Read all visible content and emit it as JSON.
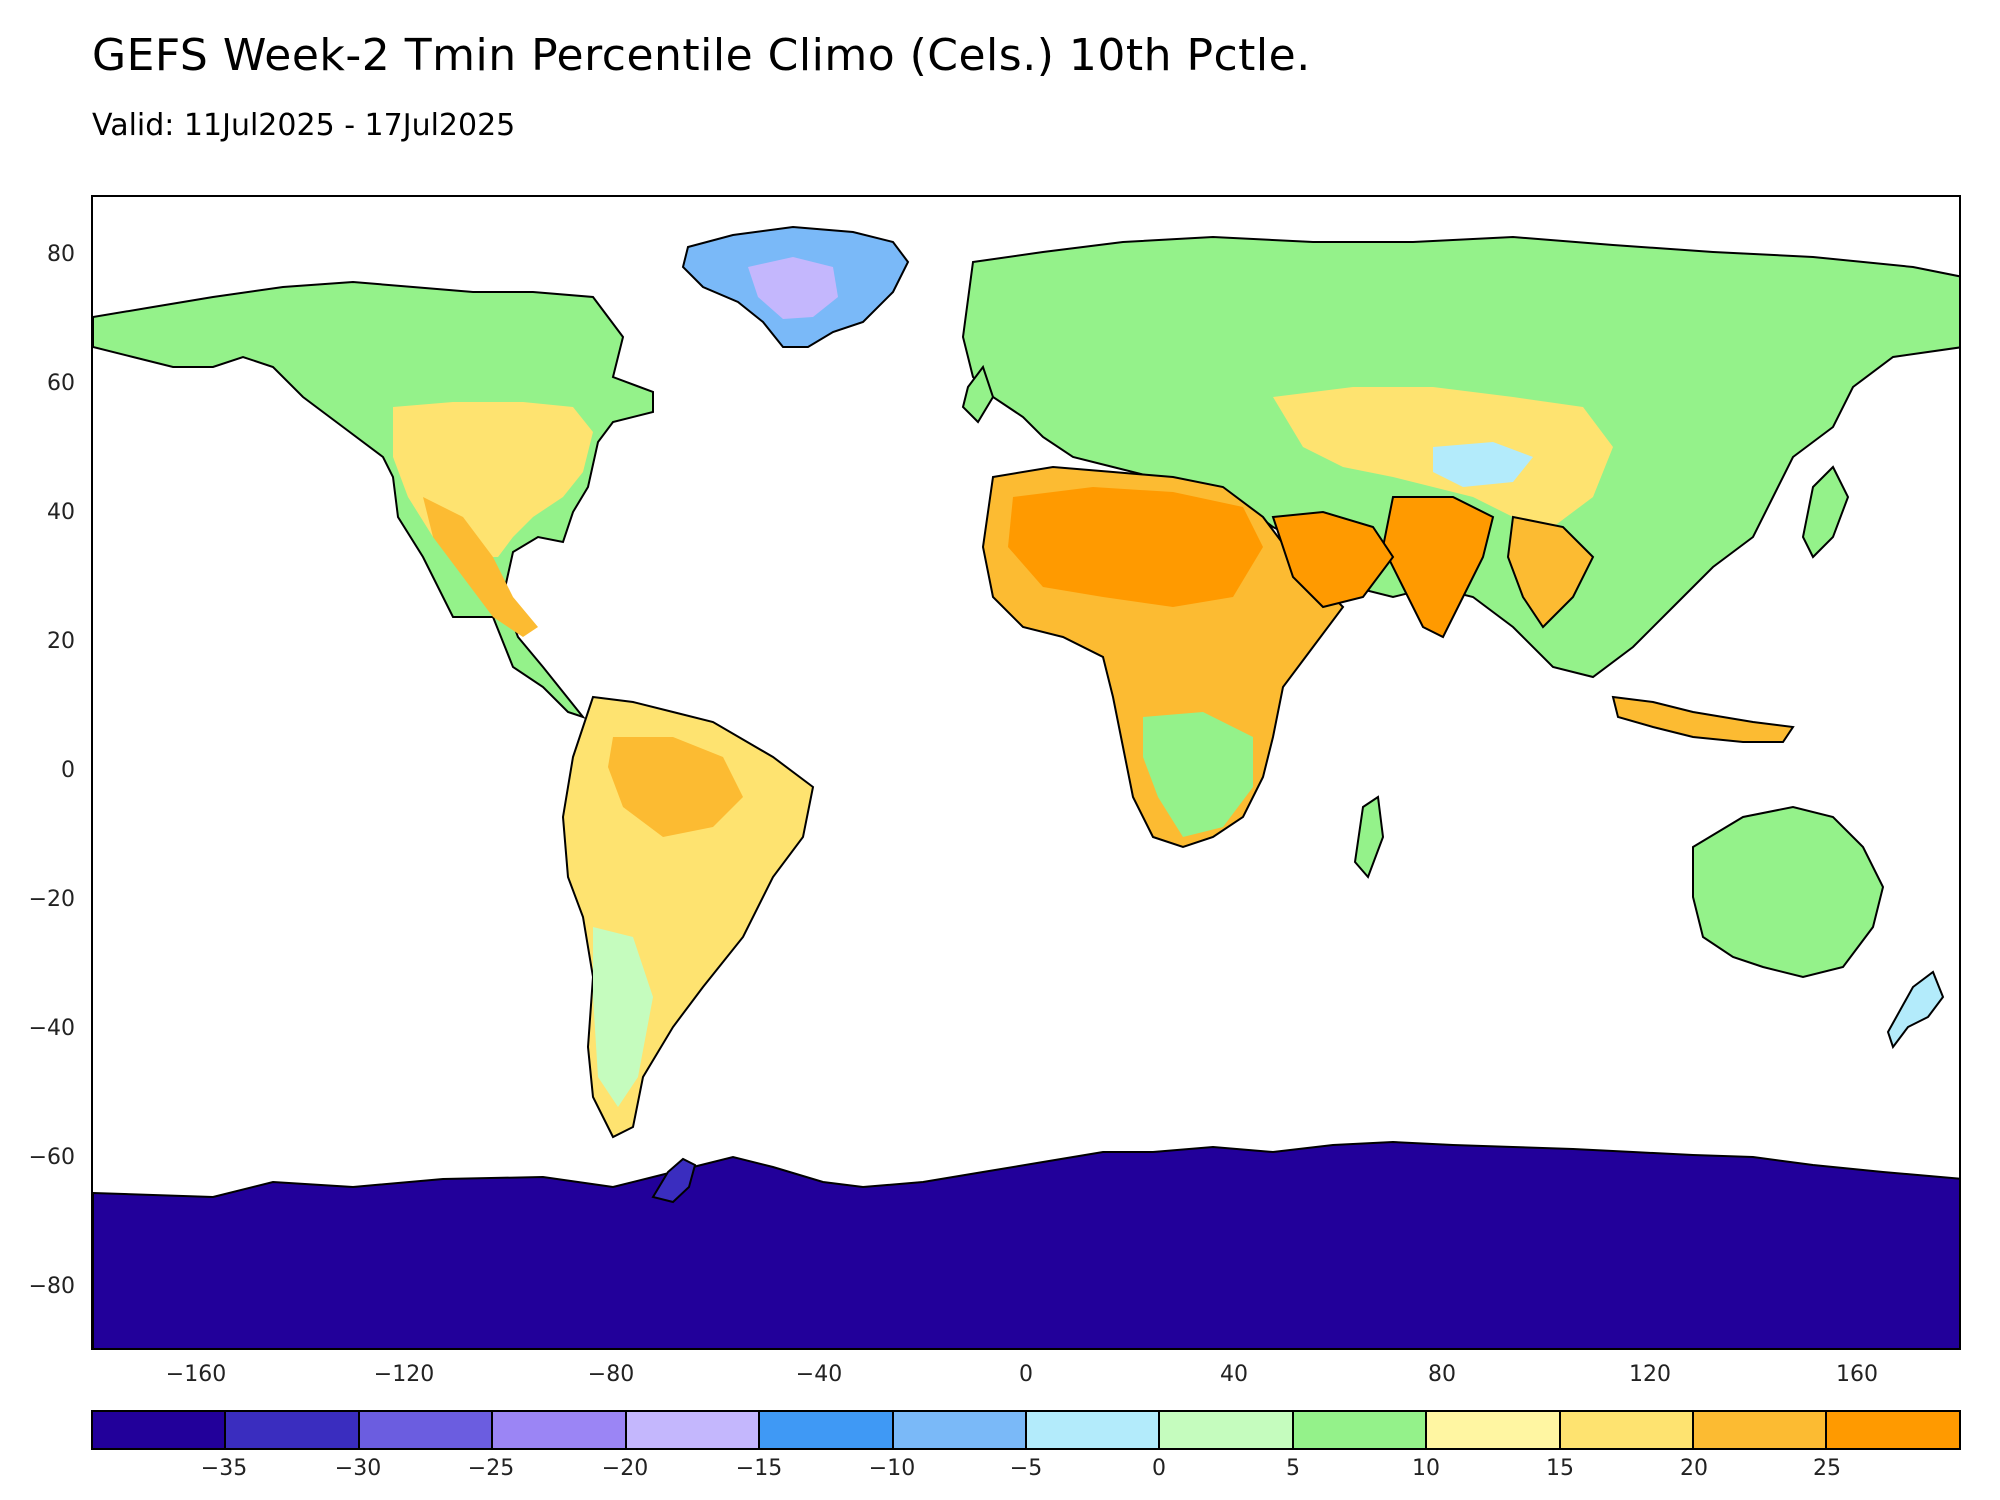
{
  "title": "GEFS Week-2 Tmin Percentile Climo (Cels.) 10th Pctle.",
  "subtitle": "Valid: 11Jul2025 - 17Jul2025",
  "map": {
    "lon_range": [
      -180,
      180
    ],
    "lat_range": [
      -90,
      90
    ],
    "y_ticks": [
      "80",
      "60",
      "40",
      "20",
      "0",
      "−20",
      "−40",
      "−60",
      "−80"
    ],
    "x_ticks": [
      "−160",
      "−120",
      "−80",
      "−40",
      "0",
      "40",
      "80",
      "120",
      "160"
    ]
  },
  "colorbar": {
    "labels": [
      "−35",
      "−30",
      "−25",
      "−20",
      "−15",
      "−10",
      "−5",
      "0",
      "5",
      "10",
      "15",
      "20",
      "25"
    ],
    "colors": [
      "#22009a",
      "#3a2dbf",
      "#6b5de0",
      "#9b85f5",
      "#c4b7fd",
      "#3f99f5",
      "#7ab9f8",
      "#b3ebfb",
      "#c5fcbe",
      "#94f28a",
      "#fff6a2",
      "#fee370",
      "#fcbb32",
      "#ff9a00"
    ]
  }
}
